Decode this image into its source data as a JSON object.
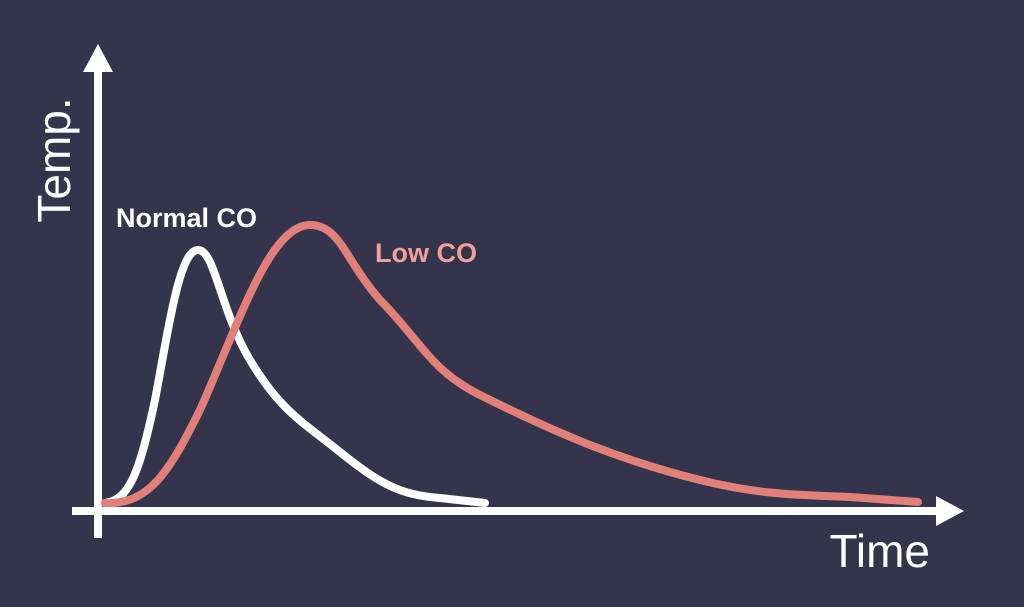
{
  "axes": {
    "y_label": "Temp.",
    "x_label": "Time"
  },
  "curves": [
    {
      "label": "Normal CO"
    },
    {
      "label": "Low CO"
    }
  ]
}
